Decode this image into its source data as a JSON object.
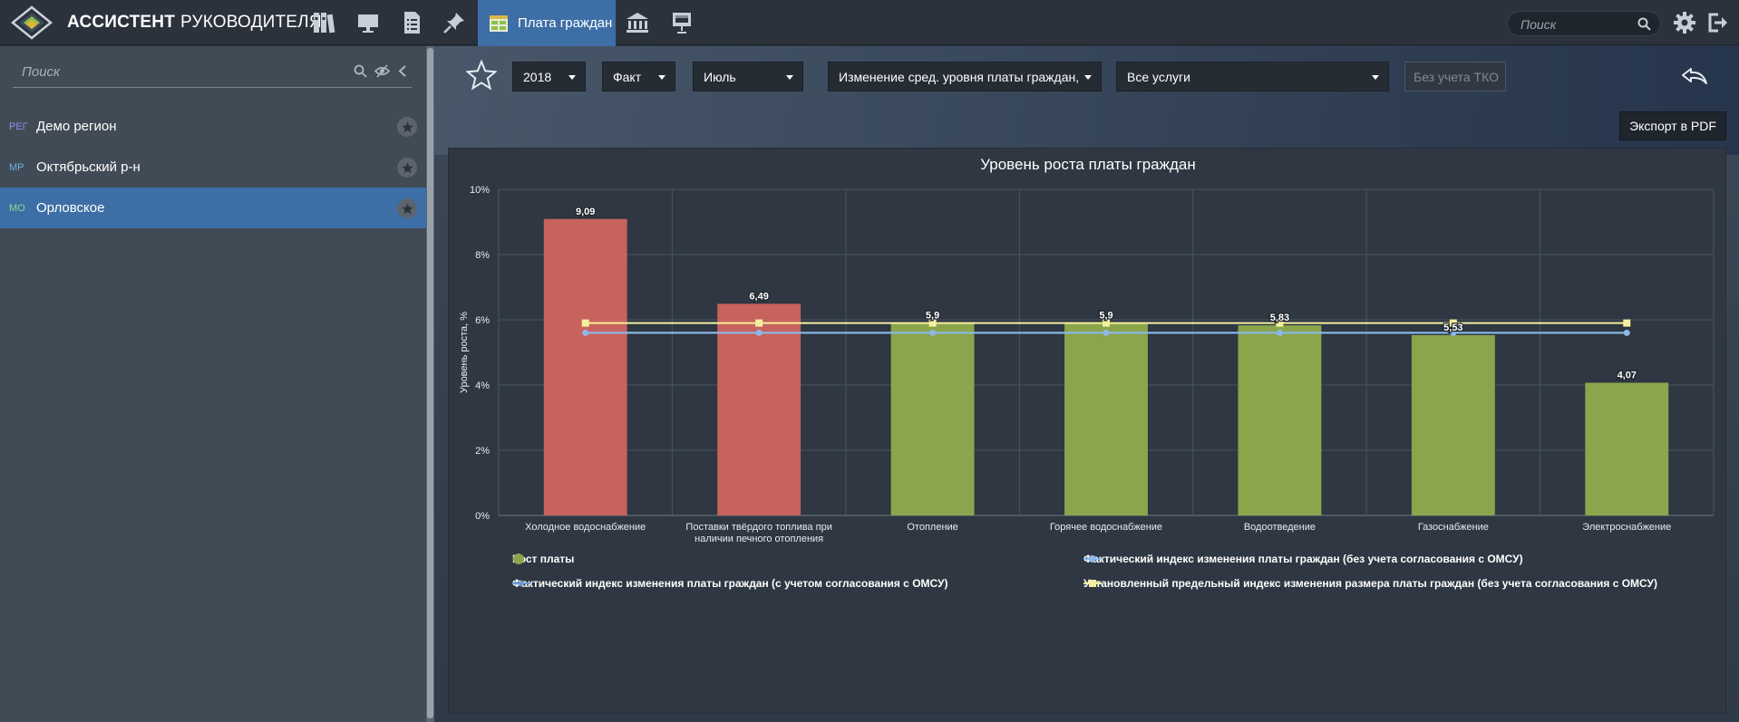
{
  "header": {
    "brand_bold": "АССИСТЕНТ",
    "brand_light": "РУКОВОДИТЕЛЯ",
    "active_tab_label": "Плата граждан",
    "search_placeholder": "Поиск",
    "nav_icons": [
      "binders-icon",
      "monitor-icon",
      "checklist-icon",
      "pin-icon",
      "payment-table-icon",
      "institution-icon",
      "presentation-icon"
    ]
  },
  "sidebar": {
    "search_placeholder": "Поиск",
    "items": [
      {
        "tag": "РЕГ",
        "tag_color": "#8f8fe6",
        "name": "Демо регион",
        "active": false
      },
      {
        "tag": "МР",
        "tag_color": "#6ab0e0",
        "name": "Октябрьский р-н",
        "active": false
      },
      {
        "tag": "МО",
        "tag_color": "#7fe08a",
        "name": "Орловское",
        "active": true
      }
    ]
  },
  "filters": {
    "year": "2018",
    "mode": "Факт",
    "month": "Июль",
    "indicator": "Изменение сред. уровня платы граждан, %",
    "service": "Все услуги",
    "tko": "Без учета ТКО"
  },
  "toolbar": {
    "export_label": "Экспорт в PDF"
  },
  "chart_data": {
    "type": "bar",
    "title": "Уровень роста платы граждан",
    "ylabel": "Уровень роста, %",
    "xlabel": "",
    "ylim": [
      0,
      10
    ],
    "y_ticks": [
      "0%",
      "2%",
      "4%",
      "6%",
      "8%",
      "10%"
    ],
    "grid": true,
    "categories": [
      "Холодное водоснабжение",
      "Поставки твёрдого топлива при наличии печного отопления",
      "Отопление",
      "Горячее водоснабжение",
      "Водоотведение",
      "Газоснабжение",
      "Электроснабжение"
    ],
    "category_lines": [
      [
        "Холодное водоснабжение"
      ],
      [
        "Поставки твёрдого топлива при",
        "наличии печного отопления"
      ],
      [
        "Отопление"
      ],
      [
        "Горячее водоснабжение"
      ],
      [
        "Водоотведение"
      ],
      [
        "Газоснабжение"
      ],
      [
        "Электроснабжение"
      ]
    ],
    "bar_labels": [
      "9,09",
      "6,49",
      "5,9",
      "5,9",
      "5,83",
      "5,53",
      "4,07"
    ],
    "series": [
      {
        "name": "Рост платы",
        "kind": "bar",
        "values": [
          9.09,
          6.49,
          5.9,
          5.9,
          5.83,
          5.53,
          4.07
        ],
        "colors": [
          "#c8625c",
          "#c8625c",
          "#8aa54b",
          "#8aa54b",
          "#8aa54b",
          "#8aa54b",
          "#8aa54b"
        ]
      },
      {
        "name": "Фактический индекс изменения платы граждан (без учета согласования с ОМСУ)",
        "kind": "line",
        "marker": "circle",
        "color": "#8fb8e8",
        "values": [
          5.6,
          5.6,
          5.6,
          5.6,
          5.6,
          5.6,
          5.6
        ]
      },
      {
        "name": "Фактический индекс изменения платы граждан (с учетом согласования с ОМСУ)",
        "kind": "line",
        "marker": "none",
        "color": "#6f9ad6",
        "values": [
          5.6,
          5.6,
          5.6,
          5.6,
          5.6,
          5.6,
          5.6
        ]
      },
      {
        "name": "Установленный предельный индекс изменения размера платы граждан (без учета согласования с ОМСУ)",
        "kind": "line",
        "marker": "square",
        "color": "#f5f0a0",
        "values": [
          5.9,
          5.9,
          5.9,
          5.9,
          5.9,
          5.9,
          5.9
        ]
      }
    ],
    "legend_placement": "bottom",
    "legend_marker_colors": [
      "#8aa54b",
      "#8fb8e8",
      "#6f9ad6",
      "#f5f0a0"
    ]
  }
}
